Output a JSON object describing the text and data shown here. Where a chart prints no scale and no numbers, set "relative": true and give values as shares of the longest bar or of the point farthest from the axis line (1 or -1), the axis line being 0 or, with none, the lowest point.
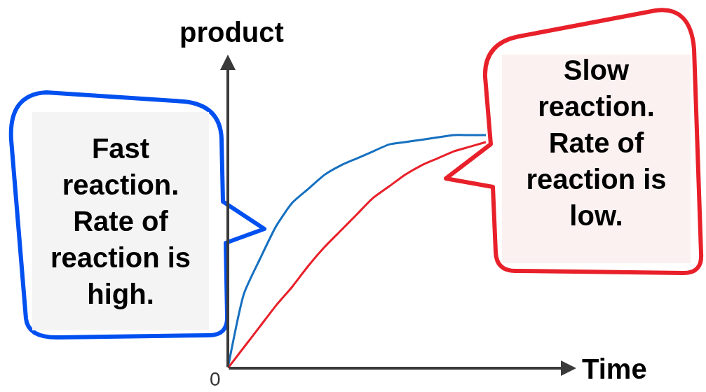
{
  "chart_data": {
    "type": "line",
    "relative": true,
    "xlabel": "Time",
    "ylabel": "product",
    "categories": [
      null,
      null,
      null,
      null,
      null,
      null,
      null,
      null,
      null,
      null,
      null,
      null,
      null,
      null,
      null,
      null,
      null
    ],
    "series": [
      {
        "color": "#1670c0",
        "values": [
          0,
          0.32,
          0.47,
          0.61,
          0.71,
          0.77,
          0.83,
          0.87,
          0.9,
          0.93,
          0.96,
          0.97,
          0.98,
          0.99,
          1,
          1,
          1
        ]
      },
      {
        "color": "#e8202a",
        "values": [
          0,
          0.09,
          0.18,
          0.27,
          0.35,
          0.44,
          0.52,
          0.59,
          0.66,
          0.73,
          0.78,
          0.83,
          0.87,
          0.9,
          0.93,
          0.95,
          0.97
        ]
      }
    ],
    "annotations": [
      "Fast reaction. Rate of reaction is high.",
      "Slow reaction. Rate of reaction is low.",
      "0"
    ]
  }
}
